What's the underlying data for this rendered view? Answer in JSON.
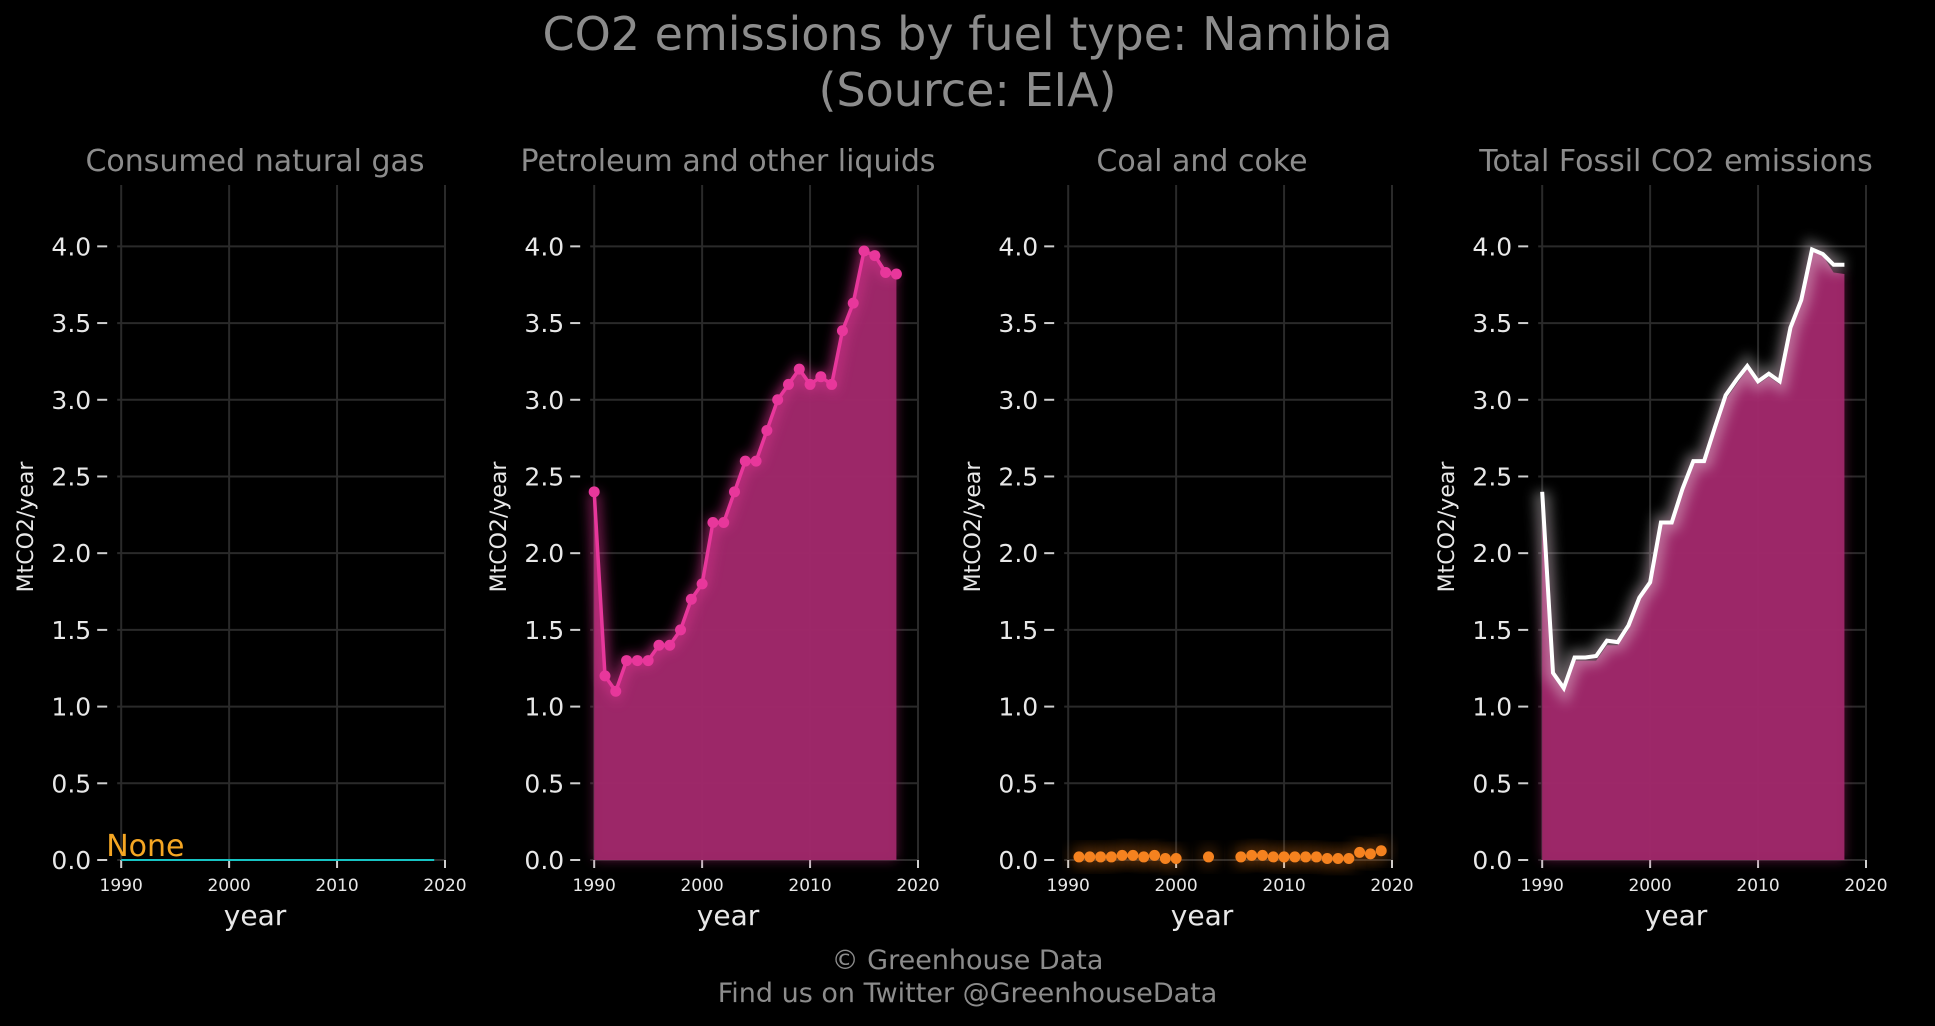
{
  "title": {
    "line1": "CO2 emissions by fuel type: Namibia",
    "line2": "(Source: EIA)"
  },
  "credits": {
    "line1": "© Greenhouse Data",
    "line2": "Find us on Twitter @GreenhouseData"
  },
  "colors": {
    "background": "#000000",
    "text_muted": "#8c8c8c",
    "gas": "#17c4c4",
    "none_label": "#f5a623",
    "petroleum": "#e8379b",
    "petroleum_fill": "#a0286a",
    "coal": "#f5821f",
    "total_line": "#ffffff"
  },
  "chart_data": [
    {
      "type": "line",
      "title": "Consumed natural gas",
      "xlabel": "year",
      "ylabel": "MtCO2/year",
      "xlim": [
        1988.5,
        2020
      ],
      "ylim": [
        0,
        4.4
      ],
      "xticks": [
        1990,
        2000,
        2010,
        2020
      ],
      "yticks": [
        0.0,
        0.5,
        1.0,
        1.5,
        2.0,
        2.5,
        3.0,
        3.5,
        4.0
      ],
      "grid": true,
      "annotation": "None",
      "series": [
        {
          "key": "gas",
          "x": [
            1990,
            2019
          ],
          "y": [
            0,
            0
          ]
        }
      ]
    },
    {
      "type": "area",
      "title": "Petroleum and other liquids",
      "xlabel": "year",
      "ylabel": "MtCO2/year",
      "xlim": [
        1988.5,
        2020
      ],
      "ylim": [
        0,
        4.4
      ],
      "xticks": [
        1990,
        2000,
        2010,
        2020
      ],
      "yticks": [
        0.0,
        0.5,
        1.0,
        1.5,
        2.0,
        2.5,
        3.0,
        3.5,
        4.0
      ],
      "grid": true,
      "series": [
        {
          "key": "petroleum",
          "x": [
            1990,
            1991,
            1992,
            1993,
            1994,
            1995,
            1996,
            1997,
            1998,
            1999,
            2000,
            2001,
            2002,
            2003,
            2004,
            2005,
            2006,
            2007,
            2008,
            2009,
            2010,
            2011,
            2012,
            2013,
            2014,
            2015,
            2016,
            2017,
            2018
          ],
          "y": [
            2.4,
            1.2,
            1.1,
            1.3,
            1.3,
            1.3,
            1.4,
            1.4,
            1.5,
            1.7,
            1.8,
            2.2,
            2.2,
            2.4,
            2.6,
            2.6,
            2.8,
            3.0,
            3.1,
            3.2,
            3.1,
            3.15,
            3.1,
            3.45,
            3.63,
            3.97,
            3.94,
            3.83,
            3.82
          ]
        }
      ]
    },
    {
      "type": "scatter",
      "title": "Coal and coke",
      "xlabel": "year",
      "ylabel": "MtCO2/year",
      "xlim": [
        1988.5,
        2020
      ],
      "ylim": [
        0,
        4.4
      ],
      "xticks": [
        1990,
        2000,
        2010,
        2020
      ],
      "yticks": [
        0.0,
        0.5,
        1.0,
        1.5,
        2.0,
        2.5,
        3.0,
        3.5,
        4.0
      ],
      "grid": true,
      "series": [
        {
          "key": "coal",
          "x": [
            1991,
            1992,
            1993,
            1994,
            1995,
            1996,
            1997,
            1998,
            1999,
            2000,
            2003,
            2006,
            2007,
            2008,
            2009,
            2010,
            2011,
            2012,
            2013,
            2014,
            2015,
            2016,
            2017,
            2018,
            2019
          ],
          "y": [
            0.02,
            0.02,
            0.02,
            0.02,
            0.03,
            0.03,
            0.02,
            0.03,
            0.01,
            0.01,
            0.02,
            0.02,
            0.03,
            0.03,
            0.02,
            0.02,
            0.02,
            0.02,
            0.02,
            0.01,
            0.01,
            0.01,
            0.05,
            0.04,
            0.06
          ]
        }
      ]
    },
    {
      "type": "area",
      "title": "Total Fossil CO2 emissions",
      "xlabel": "year",
      "ylabel": "MtCO2/year",
      "xlim": [
        1988.5,
        2020
      ],
      "ylim": [
        0,
        4.4
      ],
      "xticks": [
        1990,
        2000,
        2010,
        2020
      ],
      "yticks": [
        0.0,
        0.5,
        1.0,
        1.5,
        2.0,
        2.5,
        3.0,
        3.5,
        4.0
      ],
      "grid": true,
      "series": [
        {
          "key": "petroleum",
          "x": [
            1990,
            1991,
            1992,
            1993,
            1994,
            1995,
            1996,
            1997,
            1998,
            1999,
            2000,
            2001,
            2002,
            2003,
            2004,
            2005,
            2006,
            2007,
            2008,
            2009,
            2010,
            2011,
            2012,
            2013,
            2014,
            2015,
            2016,
            2017,
            2018
          ],
          "y": [
            2.4,
            1.2,
            1.1,
            1.3,
            1.3,
            1.3,
            1.4,
            1.4,
            1.5,
            1.7,
            1.8,
            2.2,
            2.2,
            2.4,
            2.6,
            2.6,
            2.8,
            3.0,
            3.1,
            3.2,
            3.1,
            3.15,
            3.1,
            3.45,
            3.63,
            3.97,
            3.94,
            3.83,
            3.82
          ]
        },
        {
          "key": "total",
          "x": [
            1990,
            1991,
            1992,
            1993,
            1994,
            1995,
            1996,
            1997,
            1998,
            1999,
            2000,
            2001,
            2002,
            2003,
            2004,
            2005,
            2006,
            2007,
            2008,
            2009,
            2010,
            2011,
            2012,
            2013,
            2014,
            2015,
            2016,
            2017,
            2018
          ],
          "y": [
            2.4,
            1.22,
            1.12,
            1.32,
            1.32,
            1.33,
            1.43,
            1.42,
            1.53,
            1.71,
            1.81,
            2.2,
            2.2,
            2.42,
            2.6,
            2.6,
            2.82,
            3.03,
            3.13,
            3.22,
            3.12,
            3.17,
            3.12,
            3.47,
            3.65,
            3.98,
            3.95,
            3.88,
            3.88
          ]
        }
      ]
    }
  ]
}
